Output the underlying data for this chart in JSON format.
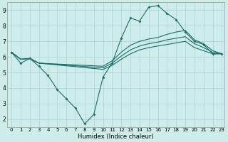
{
  "xlabel": "Humidex (Indice chaleur)",
  "bg_color": "#ceecea",
  "grid_color": "#aed8d4",
  "line_color": "#1a6e68",
  "xmin": -0.5,
  "xmax": 23.3,
  "ymin": 1.5,
  "ymax": 9.5,
  "yticks": [
    2,
    3,
    4,
    5,
    6,
    7,
    8,
    9
  ],
  "xticks": [
    0,
    1,
    2,
    3,
    4,
    5,
    6,
    7,
    8,
    9,
    10,
    11,
    12,
    13,
    14,
    15,
    16,
    17,
    18,
    19,
    20,
    21,
    22,
    23
  ],
  "main_x": [
    0,
    1,
    2,
    3,
    4,
    5,
    6,
    7,
    8,
    9,
    10,
    11,
    12,
    13,
    14,
    15,
    16,
    17,
    18,
    19,
    20,
    21,
    22,
    23
  ],
  "main_y": [
    6.3,
    5.6,
    5.9,
    5.4,
    4.8,
    3.9,
    3.3,
    2.7,
    1.7,
    2.3,
    4.7,
    5.6,
    7.2,
    8.5,
    8.3,
    9.2,
    9.3,
    8.8,
    8.4,
    7.6,
    7.0,
    6.8,
    6.2,
    6.2
  ],
  "env1_x": [
    0,
    1,
    2,
    3,
    10,
    11,
    12,
    13,
    14,
    15,
    16,
    17,
    18,
    19,
    20,
    21,
    22,
    23
  ],
  "env1_y": [
    6.3,
    5.85,
    5.9,
    5.6,
    5.4,
    5.75,
    6.3,
    6.75,
    7.0,
    7.15,
    7.25,
    7.45,
    7.6,
    7.7,
    7.1,
    6.85,
    6.4,
    6.2
  ],
  "env2_x": [
    0,
    1,
    2,
    3,
    10,
    11,
    12,
    13,
    14,
    15,
    16,
    17,
    18,
    19,
    20,
    21,
    22,
    23
  ],
  "env2_y": [
    6.3,
    5.85,
    5.9,
    5.6,
    5.3,
    5.6,
    6.05,
    6.45,
    6.7,
    6.85,
    6.95,
    7.1,
    7.2,
    7.3,
    6.85,
    6.6,
    6.3,
    6.2
  ],
  "env3_x": [
    0,
    1,
    2,
    3,
    10,
    11,
    12,
    13,
    14,
    15,
    16,
    17,
    18,
    19,
    20,
    21,
    22,
    23
  ],
  "env3_y": [
    6.3,
    5.85,
    5.9,
    5.6,
    5.2,
    5.45,
    5.85,
    6.2,
    6.45,
    6.6,
    6.7,
    6.8,
    6.9,
    7.0,
    6.6,
    6.4,
    6.2,
    6.2
  ]
}
